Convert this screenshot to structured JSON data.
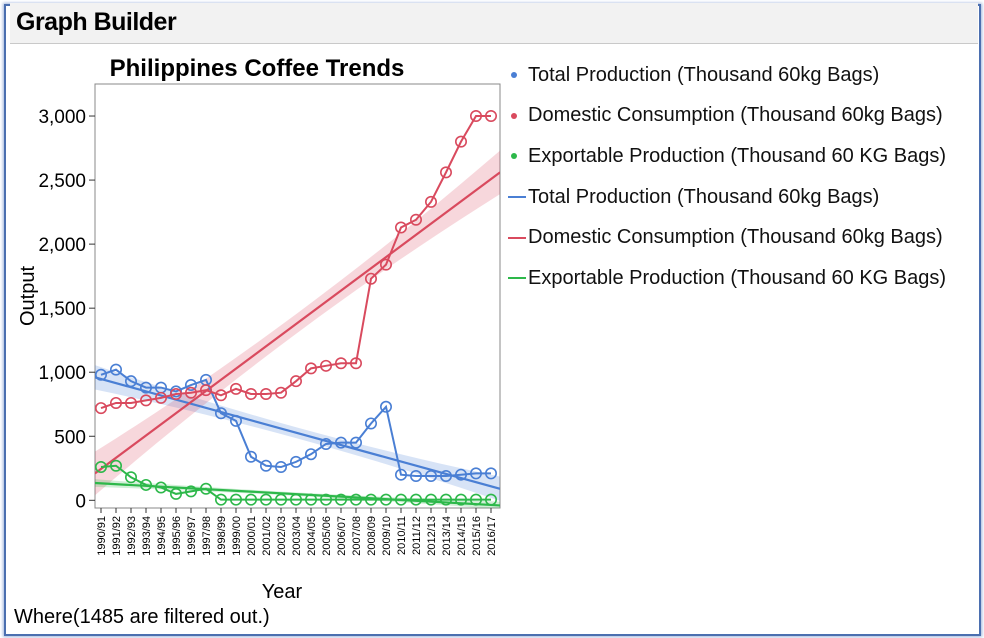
{
  "window": {
    "title": "Graph Builder"
  },
  "footer": {
    "text": "Where(1485 are filtered out.)"
  },
  "colors": {
    "blue": "#4a7fd4",
    "red": "#d94a5e",
    "green": "#2db84a"
  },
  "legend": [
    {
      "label": "Total Production (Thousand 60kg Bags)",
      "kind": "dot",
      "color": "#4a7fd4"
    },
    {
      "label": "Domestic Consumption (Thousand 60kg Bags)",
      "kind": "dot",
      "color": "#d94a5e"
    },
    {
      "label": "Exportable Production (Thousand 60 KG Bags)",
      "kind": "dot",
      "color": "#2db84a"
    },
    {
      "label": "Total Production (Thousand 60kg Bags)",
      "kind": "line",
      "color": "#4a7fd4"
    },
    {
      "label": "Domestic Consumption (Thousand 60kg Bags)",
      "kind": "line",
      "color": "#d94a5e"
    },
    {
      "label": "Exportable Production (Thousand 60 KG Bags)",
      "kind": "line",
      "color": "#2db84a"
    }
  ],
  "chart_data": {
    "type": "line",
    "title": "Philippines Coffee Trends",
    "xlabel": "Year",
    "ylabel": "Output",
    "ylim": [
      -60,
      3250
    ],
    "yticks": [
      0,
      500,
      1000,
      1500,
      2000,
      2500,
      3000
    ],
    "ytick_labels": [
      "0",
      "500",
      "1,000",
      "1,500",
      "2,000",
      "2,500",
      "3,000"
    ],
    "categories": [
      "1990/91",
      "1991/92",
      "1992/93",
      "1993/94",
      "1994/95",
      "1995/96",
      "1996/97",
      "1997/98",
      "1998/99",
      "1999/00",
      "2000/01",
      "2001/02",
      "2002/03",
      "2003/04",
      "2004/05",
      "2005/06",
      "2006/07",
      "2007/08",
      "2008/09",
      "2009/10",
      "2010/11",
      "2011/12",
      "2012/13",
      "2013/14",
      "2014/15",
      "2015/16",
      "2016/17"
    ],
    "series": [
      {
        "name": "Total Production (Thousand 60kg Bags)",
        "color": "#4a7fd4",
        "values": [
          980,
          1020,
          930,
          880,
          880,
          850,
          900,
          940,
          680,
          620,
          340,
          270,
          260,
          300,
          360,
          440,
          450,
          450,
          600,
          730,
          200,
          190,
          190,
          190,
          200,
          210,
          210
        ],
        "fit": {
          "start": 960,
          "end": 90,
          "band": 95
        }
      },
      {
        "name": "Domestic Consumption (Thousand 60kg Bags)",
        "color": "#d94a5e",
        "values": [
          720,
          760,
          760,
          780,
          800,
          830,
          840,
          860,
          820,
          870,
          830,
          830,
          840,
          930,
          1030,
          1050,
          1070,
          1070,
          1730,
          1840,
          2130,
          2190,
          2330,
          2560,
          2800,
          3000,
          3000
        ],
        "fit": {
          "start": 210,
          "end": 2560,
          "band": 170
        }
      },
      {
        "name": "Exportable Production (Thousand 60 KG Bags)",
        "color": "#2db84a",
        "values": [
          260,
          270,
          180,
          120,
          100,
          50,
          70,
          90,
          5,
          5,
          5,
          5,
          5,
          5,
          5,
          5,
          5,
          5,
          5,
          5,
          5,
          5,
          5,
          5,
          5,
          5,
          5
        ],
        "fit": {
          "start": 135,
          "end": -40,
          "band": 30
        }
      }
    ]
  }
}
